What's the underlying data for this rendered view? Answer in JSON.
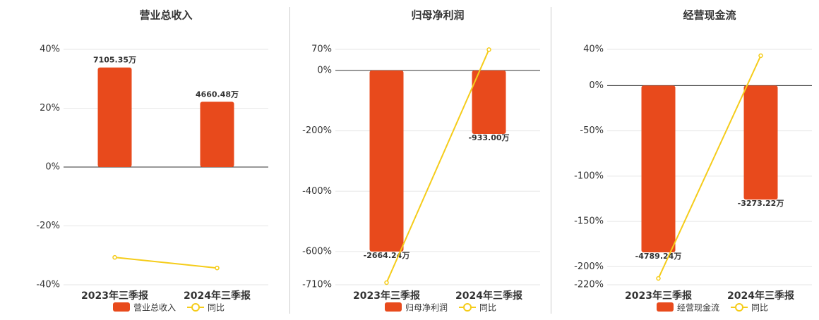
{
  "chart_data": [
    {
      "type": "bar",
      "title": "营业总收入",
      "categories": [
        "2023年三季报",
        "2024年三季报"
      ],
      "series": [
        {
          "name": "营业总收入",
          "color": "#e84a1c",
          "axis": "y2",
          "values": [
            7105.35,
            4660.48
          ],
          "value_labels": [
            "7105.35万",
            "4660.48万"
          ]
        },
        {
          "name": "同比",
          "color": "#f5cc1a",
          "values": [
            -30.7,
            -34.3
          ]
        }
      ],
      "ylim": [
        -40,
        40
      ],
      "yticks": [
        {
          "value": -40,
          "label": "-40%"
        },
        {
          "value": -20,
          "label": "-20%"
        },
        {
          "value": 0,
          "label": "0%"
        },
        {
          "value": 20,
          "label": "20%"
        },
        {
          "value": 40,
          "label": "40%"
        }
      ],
      "y2lim": [
        -8400,
        8400
      ],
      "grid": true
    },
    {
      "type": "bar",
      "title": "归母净利润",
      "categories": [
        "2023年三季报",
        "2024年三季报"
      ],
      "series": [
        {
          "name": "归母净利润",
          "color": "#e84a1c",
          "axis": "y2",
          "values": [
            -2664.24,
            -933.0
          ],
          "value_labels": [
            "-2664.24万",
            "-933.00万"
          ]
        },
        {
          "name": "同比",
          "color": "#f5cc1a",
          "values": [
            -703,
            69
          ]
        }
      ],
      "ylim": [
        -710,
        70
      ],
      "yticks": [
        {
          "value": -710,
          "label": "-710%"
        },
        {
          "value": -600,
          "label": "-600%"
        },
        {
          "value": -400,
          "label": "-400%"
        },
        {
          "value": -200,
          "label": "-200%"
        },
        {
          "value": 0,
          "label": "0%"
        },
        {
          "value": 70,
          "label": "70%"
        }
      ],
      "y2lim": [
        -3153,
        311
      ],
      "grid": true
    },
    {
      "type": "bar",
      "title": "经营现金流",
      "categories": [
        "2023年三季报",
        "2024年三季报"
      ],
      "series": [
        {
          "name": "经营现金流",
          "color": "#e84a1c",
          "axis": "y2",
          "values": [
            -4789.24,
            -3273.22
          ],
          "value_labels": [
            "-4789.24万",
            "-3273.22万"
          ]
        },
        {
          "name": "同比",
          "color": "#f5cc1a",
          "values": [
            -213,
            33
          ]
        }
      ],
      "ylim": [
        -220,
        40
      ],
      "yticks": [
        {
          "value": -220,
          "label": "-220%"
        },
        {
          "value": -200,
          "label": "-200%"
        },
        {
          "value": -150,
          "label": "-150%"
        },
        {
          "value": -100,
          "label": "-100%"
        },
        {
          "value": -50,
          "label": "-50%"
        },
        {
          "value": 0,
          "label": "0%"
        },
        {
          "value": 40,
          "label": "40%"
        }
      ],
      "y2lim": [
        -5720,
        1040
      ],
      "grid": true
    }
  ]
}
